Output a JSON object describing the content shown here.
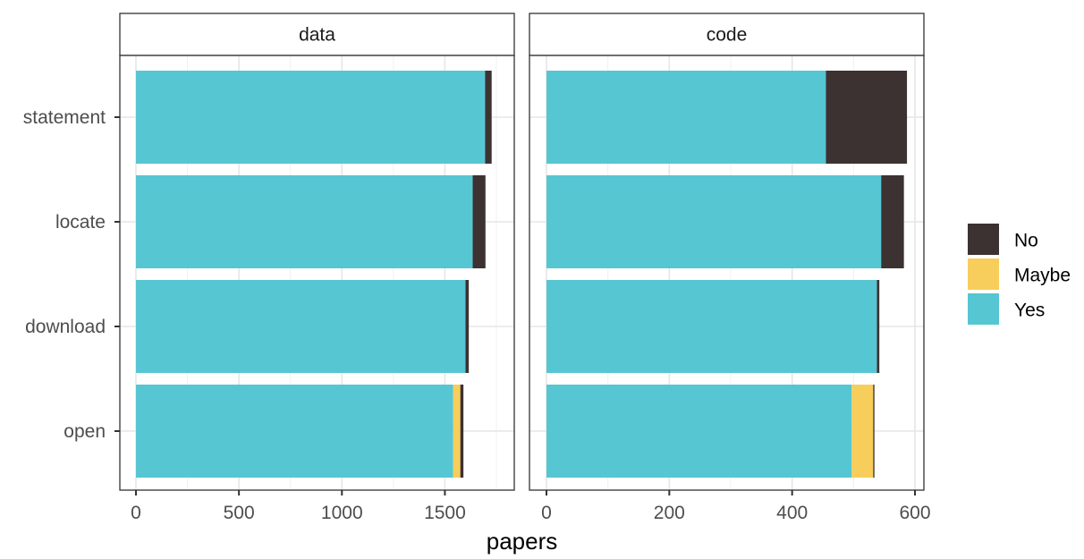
{
  "chart_data": {
    "type": "bar",
    "orientation": "horizontal",
    "stacked": true,
    "categories": [
      "statement",
      "locate",
      "download",
      "open"
    ],
    "xlabel": "papers",
    "ylabel": "",
    "grid": true,
    "legend_position": "right",
    "legend": [
      "No",
      "Maybe",
      "Yes"
    ],
    "colors": {
      "Yes": "#56C6D2",
      "Maybe": "#F7CE5B",
      "No": "#3C3232"
    },
    "panels": [
      {
        "strip": "data",
        "xlim": [
          0,
          1790
        ],
        "xticks": [
          0,
          500,
          1000,
          1500
        ],
        "xtick_labels": [
          "0",
          "500",
          "1000",
          "1500"
        ],
        "series": [
          {
            "name": "Yes",
            "values": [
              1695,
              1635,
              1600,
              1540
            ]
          },
          {
            "name": "Maybe",
            "values": [
              0,
              0,
              0,
              35
            ]
          },
          {
            "name": "No",
            "values": [
              32,
              62,
              16,
              15
            ]
          }
        ]
      },
      {
        "strip": "code",
        "xlim": [
          0,
          615
        ],
        "xticks": [
          0,
          200,
          400,
          600
        ],
        "xtick_labels": [
          "0",
          "200",
          "400",
          "600"
        ],
        "series": [
          {
            "name": "Yes",
            "values": [
              455,
              545,
              538,
              497
            ]
          },
          {
            "name": "Maybe",
            "values": [
              0,
              0,
              0,
              35
            ]
          },
          {
            "name": "No",
            "values": [
              132,
              37,
              4,
              2
            ]
          }
        ]
      }
    ]
  }
}
